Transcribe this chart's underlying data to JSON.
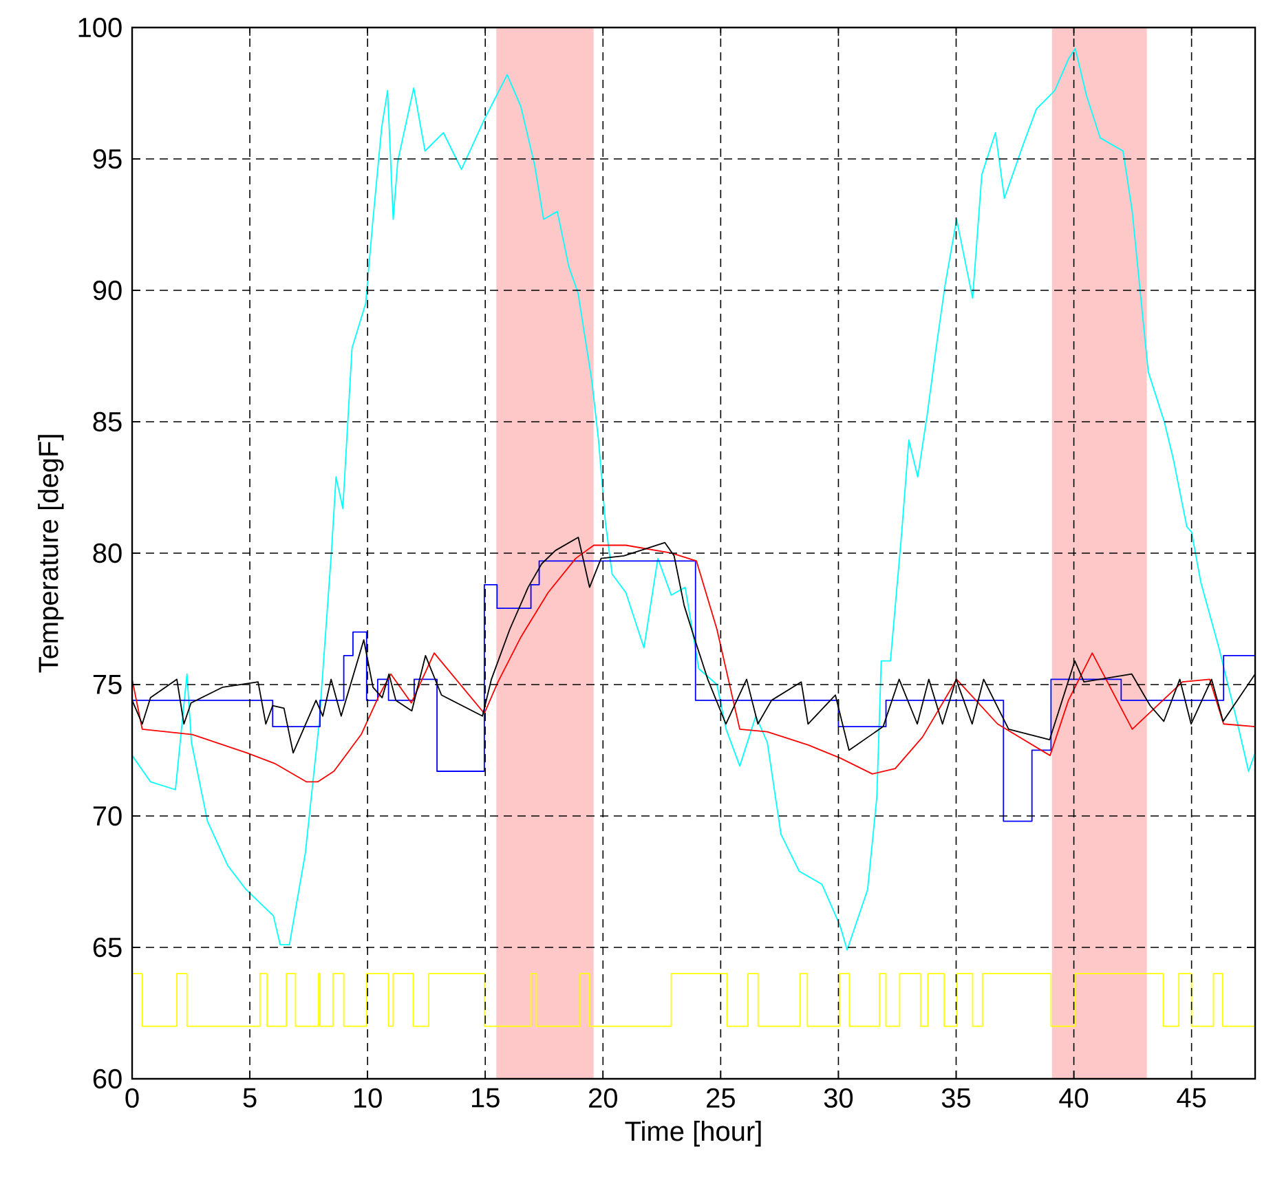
{
  "chart_data": {
    "type": "line",
    "xlabel": "Time [hour]",
    "ylabel": "Temperature [degF]",
    "xlim": [
      0,
      47.7
    ],
    "ylim": [
      60,
      100
    ],
    "xticks": [
      0,
      5,
      10,
      15,
      20,
      25,
      30,
      35,
      40,
      45
    ],
    "yticks": [
      60,
      65,
      70,
      75,
      80,
      85,
      90,
      95,
      100
    ],
    "grid": true,
    "bands": [
      {
        "axis": "x",
        "from": 15.47,
        "to": 19.6,
        "color": "#ffc8c8"
      },
      {
        "axis": "x",
        "from": 39.07,
        "to": 43.1,
        "color": "#ffc8c8"
      }
    ],
    "series": [
      {
        "color": "#00ffff",
        "x": [
          0,
          0.78,
          1.84,
          2.33,
          2.52,
          3.2,
          4.07,
          4.84,
          6.0,
          6.29,
          6.68,
          7.36,
          7.94,
          8.47,
          8.66,
          8.95,
          9.34,
          9.92,
          10.21,
          10.6,
          10.85,
          11.09,
          11.28,
          11.96,
          12.44,
          13.22,
          13.99,
          14.96,
          15.93,
          16.51,
          17.09,
          17.48,
          18.06,
          18.55,
          18.94,
          19.52,
          19.81,
          20.1,
          20.39,
          20.97,
          21.74,
          22.33,
          22.9,
          23.49,
          24.07,
          24.84,
          25.23,
          25.81,
          26.49,
          26.98,
          27.56,
          28.33,
          29.3,
          30.08,
          30.37,
          31.24,
          31.63,
          31.82,
          32.21,
          32.69,
          32.99,
          33.37,
          33.76,
          34.15,
          34.53,
          35.02,
          35.7,
          36.09,
          36.67,
          37.05,
          37.83,
          38.41,
          39.19,
          39.77,
          40.06,
          40.54,
          41.12,
          42.09,
          42.48,
          42.87,
          43.16,
          43.84,
          44.22,
          44.8,
          45.0,
          45.39,
          46.16,
          46.93,
          47.42,
          47.7
        ],
        "values": [
          72.3,
          71.3,
          71.0,
          75.4,
          72.8,
          69.8,
          68.1,
          67.2,
          66.2,
          65.1,
          65.1,
          68.6,
          73.5,
          80.1,
          82.9,
          81.7,
          87.8,
          89.5,
          92.5,
          96.2,
          97.6,
          92.7,
          94.9,
          97.7,
          95.3,
          96.0,
          94.6,
          96.5,
          98.2,
          97.0,
          94.8,
          92.7,
          93.0,
          90.9,
          89.9,
          86.6,
          84.3,
          81.2,
          79.2,
          78.5,
          76.4,
          79.8,
          78.4,
          78.7,
          75.6,
          75.0,
          73.3,
          71.9,
          73.8,
          72.8,
          69.3,
          67.9,
          67.4,
          65.8,
          64.9,
          67.2,
          70.7,
          75.9,
          75.9,
          80.8,
          84.3,
          82.9,
          85.2,
          87.8,
          90.2,
          92.7,
          89.7,
          94.4,
          96.0,
          93.5,
          95.5,
          96.9,
          97.6,
          98.8,
          99.2,
          97.4,
          95.8,
          95.3,
          93.0,
          89.5,
          86.9,
          85.0,
          83.6,
          81.0,
          80.8,
          78.9,
          76.4,
          73.6,
          71.7,
          72.4
        ]
      },
      {
        "type": "step",
        "color": "#0000ff",
        "x": [
          0,
          5.97,
          7.98,
          8.99,
          9.38,
          9.96,
          10.43,
          10.89,
          11.98,
          12.95,
          14.96,
          15.5,
          16.94,
          17.29,
          23.93,
          30.0,
          32.02,
          37.01,
          38.22,
          39.03,
          42.01,
          46.36,
          47.7
        ],
        "values": [
          74.4,
          73.4,
          74.4,
          76.1,
          77.0,
          74.4,
          75.2,
          74.4,
          75.2,
          71.7,
          78.8,
          77.9,
          78.8,
          79.7,
          74.4,
          73.4,
          74.4,
          69.8,
          72.5,
          75.2,
          74.4,
          76.1,
          76.1
        ]
      },
      {
        "color": "#ff0000",
        "x": [
          0,
          0.43,
          2.56,
          4.88,
          6.05,
          7.4,
          7.89,
          8.57,
          9.73,
          10.5,
          10.99,
          11.86,
          12.83,
          14.96,
          15.54,
          16.51,
          17.67,
          18.84,
          19.61,
          20.97,
          22.91,
          23.97,
          24.84,
          25.81,
          26.98,
          28.72,
          30.08,
          31.44,
          32.41,
          33.57,
          35.02,
          36.76,
          38.99,
          39.77,
          40.78,
          42.48,
          44.61,
          45.77,
          46.36,
          47.7
        ],
        "values": [
          75.2,
          73.3,
          73.1,
          72.4,
          72.0,
          71.3,
          71.3,
          71.7,
          73.1,
          74.6,
          75.4,
          74.3,
          76.2,
          73.9,
          75.1,
          76.8,
          78.5,
          79.8,
          80.3,
          80.3,
          80.0,
          79.7,
          77.1,
          73.3,
          73.2,
          72.7,
          72.2,
          71.6,
          71.8,
          73.0,
          75.2,
          73.5,
          72.3,
          74.4,
          76.2,
          73.3,
          75.1,
          75.2,
          73.5,
          73.4
        ]
      },
      {
        "color": "#000000",
        "x": [
          0,
          0.43,
          0.78,
          1.9,
          2.2,
          2.5,
          3.85,
          5.35,
          5.68,
          5.97,
          6.45,
          6.84,
          7.23,
          7.81,
          8.1,
          8.45,
          8.88,
          9.84,
          10.23,
          10.62,
          10.91,
          11.2,
          11.88,
          12.46,
          13.14,
          14.88,
          15.26,
          16.04,
          16.82,
          17.4,
          17.98,
          18.95,
          19.43,
          19.92,
          20.89,
          22.63,
          23.02,
          23.45,
          23.87,
          24.45,
          25.22,
          26.1,
          26.58,
          27.16,
          28.42,
          28.71,
          29.87,
          30.45,
          31.9,
          32.58,
          33.35,
          33.84,
          34.42,
          35.0,
          35.68,
          36.17,
          37.23,
          38.97,
          40.04,
          40.43,
          42.46,
          43.24,
          43.82,
          44.5,
          44.98,
          45.85,
          46.34,
          47.7
        ],
        "values": [
          74.4,
          73.5,
          74.5,
          75.2,
          73.5,
          74.3,
          74.9,
          75.1,
          73.5,
          74.2,
          74.1,
          72.4,
          73.2,
          74.4,
          73.8,
          75.2,
          73.8,
          76.7,
          74.9,
          74.5,
          75.4,
          74.4,
          74.0,
          76.1,
          74.6,
          73.8,
          75.2,
          77.1,
          78.7,
          79.6,
          80.1,
          80.6,
          78.7,
          79.8,
          79.9,
          80.4,
          79.9,
          78.0,
          76.8,
          75.2,
          73.5,
          75.2,
          73.5,
          74.4,
          75.1,
          73.5,
          74.6,
          72.5,
          73.4,
          75.2,
          73.5,
          75.2,
          73.5,
          75.2,
          73.5,
          75.2,
          73.3,
          72.9,
          75.9,
          75.1,
          75.4,
          74.2,
          73.6,
          75.2,
          73.5,
          75.2,
          73.6,
          75.4
        ]
      },
      {
        "type": "step",
        "color": "#ffff00",
        "x": [
          0,
          0.43,
          1.9,
          2.33,
          5.43,
          5.73,
          6.55,
          6.94,
          7.91,
          7.98,
          8.53,
          8.99,
          9.96,
          10.89,
          11.09,
          11.94,
          12.6,
          14.96,
          16.94,
          17.17,
          19.03,
          19.42,
          22.9,
          25.27,
          26.16,
          26.59,
          28.37,
          28.68,
          30.04,
          30.47,
          31.74,
          32.02,
          32.6,
          33.49,
          33.8,
          34.49,
          35.03,
          35.7,
          36.12,
          39.03,
          40.04,
          43.8,
          44.46,
          45.0,
          45.93,
          46.32,
          47.7
        ],
        "values": [
          64,
          62,
          64,
          62,
          64,
          62,
          64,
          62,
          64,
          62,
          64,
          62,
          64,
          62,
          64,
          62,
          64,
          62,
          64,
          62,
          64,
          62,
          64,
          62,
          64,
          62,
          64,
          62,
          64,
          62,
          64,
          62,
          64,
          62,
          64,
          62,
          64,
          62,
          64,
          62,
          64,
          62,
          64,
          62,
          64,
          62,
          62
        ]
      }
    ]
  }
}
